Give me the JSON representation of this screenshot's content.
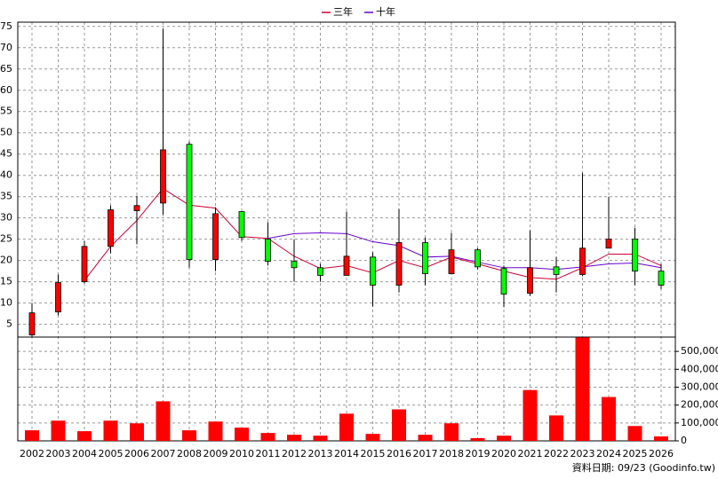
{
  "chart_data": {
    "type": "candlestick",
    "categories": [
      "2002",
      "2003",
      "2004",
      "2005",
      "2006",
      "2007",
      "2008",
      "2009",
      "2010",
      "2011",
      "2012",
      "2013",
      "2014",
      "2015",
      "2016",
      "2017",
      "2018",
      "2019",
      "2020",
      "2021",
      "2022",
      "2023",
      "2024",
      "2025",
      "2026"
    ],
    "open": [
      2.5,
      7.9,
      15,
      23.3,
      31.7,
      33.5,
      47.3,
      20.2,
      31.5,
      25,
      19.8,
      18.3,
      16.5,
      20.8,
      14.2,
      24.2,
      16.9,
      22.5,
      18.1,
      12.3,
      18.5,
      16.7,
      22.9,
      25,
      17.5
    ],
    "high": [
      10,
      16.7,
      24.6,
      32.9,
      35.2,
      74.4,
      47.9,
      32.5,
      31.5,
      29,
      25,
      19.2,
      31.5,
      21.9,
      32.1,
      25.4,
      26.5,
      22.9,
      18.8,
      27.1,
      20.8,
      40.6,
      35,
      27.7,
      19.2
    ],
    "low": [
      2.1,
      7.1,
      14.6,
      21.7,
      23.8,
      30.8,
      18.3,
      17.5,
      24.6,
      18.8,
      15,
      15,
      16.5,
      9.2,
      12.5,
      14.2,
      16.9,
      17.9,
      9,
      11.7,
      12.5,
      16.3,
      22.9,
      14.2,
      13.3
    ],
    "close": [
      7.7,
      14.8,
      23.3,
      31.9,
      32.9,
      46,
      20.2,
      31,
      25.4,
      19.8,
      18.3,
      16.5,
      21,
      14.2,
      24.2,
      16.9,
      22.5,
      18.5,
      12.1,
      18.3,
      16.7,
      22.9,
      25,
      17.5,
      14.2
    ],
    "up_color": "#ff0000",
    "down_color": "#00ff00",
    "series": [
      {
        "name": "三年",
        "color": "#cc0033",
        "values": [
          null,
          null,
          15.3,
          23.3,
          29.4,
          36.9,
          33,
          32.3,
          25.6,
          25.2,
          21,
          18.1,
          18.8,
          17.1,
          20,
          18.3,
          20.8,
          19.2,
          17.5,
          16,
          15.6,
          18.3,
          21.5,
          21.5,
          18.8
        ]
      },
      {
        "name": "十年",
        "color": "#6600cc",
        "values": [
          null,
          null,
          null,
          null,
          null,
          null,
          null,
          null,
          null,
          25.2,
          26.3,
          26.5,
          26.3,
          24.4,
          23.5,
          20.8,
          21,
          19.6,
          18.3,
          18.3,
          17.9,
          18.5,
          19.2,
          19.4,
          18.3
        ]
      }
    ],
    "volume": {
      "color": "#ff0000",
      "axis": "y2",
      "values": [
        59000,
        113000,
        54000,
        113000,
        98000,
        221000,
        59000,
        108000,
        74000,
        44000,
        34000,
        29000,
        152000,
        39000,
        176000,
        34000,
        98000,
        15000,
        29000,
        284000,
        142000,
        578000,
        245000,
        83000,
        25000
      ]
    },
    "ylim": [
      2,
      76
    ],
    "yticks": [
      5,
      10,
      15,
      20,
      25,
      30,
      35,
      40,
      45,
      50,
      55,
      60,
      65,
      70,
      75
    ],
    "y2lim": [
      0,
      580000
    ],
    "y2ticks": [
      0,
      {
        "value": 100000,
        "label": "100,000"
      },
      {
        "value": 200000,
        "label": "200,000"
      },
      {
        "value": 300000,
        "label": "300,000"
      },
      {
        "value": 400000,
        "label": "400,000"
      },
      {
        "value": 500000,
        "label": "500,000"
      }
    ],
    "grid": true,
    "legend": "top",
    "footer": "資料日期: 09/23  (Goodinfo.tw)"
  }
}
